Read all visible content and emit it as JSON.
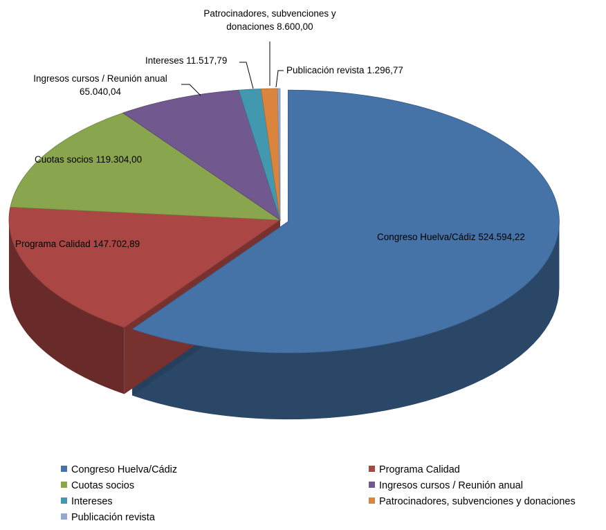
{
  "chart_data": {
    "type": "pie3d",
    "categories": [
      "Congreso Huelva/Cádiz",
      "Programa Calidad",
      "Cuotas socios",
      "Ingresos cursos / Reunión anual",
      "Intereses",
      "Patrocinadores, subvenciones y donaciones",
      "Publicación revista"
    ],
    "values": [
      524594.22,
      147702.89,
      119304.0,
      65040.04,
      11517.79,
      8600.0,
      1296.77
    ],
    "value_labels": [
      "524.594,22",
      "147.702,89",
      "119.304,00",
      "65.040,04",
      "11.517,79",
      "8.600,00",
      "1.296,77"
    ],
    "colors": [
      "#4572a7",
      "#aa4643",
      "#89a54e",
      "#71588f",
      "#4198af",
      "#db843d",
      "#93a9cf"
    ],
    "legend": "bottom"
  }
}
